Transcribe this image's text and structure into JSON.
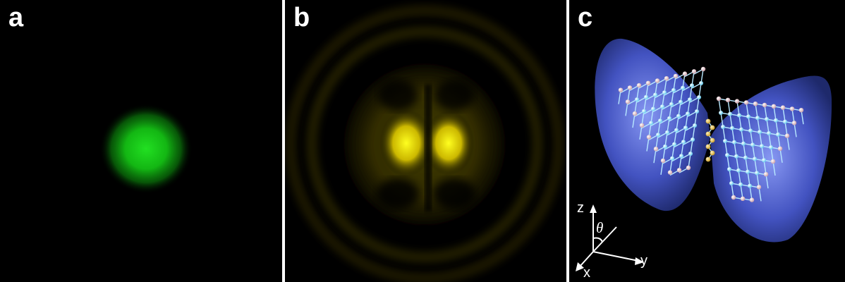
{
  "panels": [
    {
      "id": "a",
      "label": "a",
      "description_color": "#1fd41f"
    },
    {
      "id": "b",
      "label": "b",
      "description_color": "#f2e000"
    },
    {
      "id": "c",
      "label": "c",
      "description_color": "#4a5fd8"
    }
  ],
  "axes": {
    "z": "z",
    "y": "y",
    "x": "x",
    "angle": "θ"
  },
  "colors": {
    "background": "#000000",
    "green_spot": "#1fd41f",
    "yellow_pattern": "#f2e000",
    "lobe_blue": "#4a5fd8",
    "atom_cyan": "#7fdcff",
    "atom_pink": "#e8b8c0",
    "atom_gold": "#e0b040"
  }
}
